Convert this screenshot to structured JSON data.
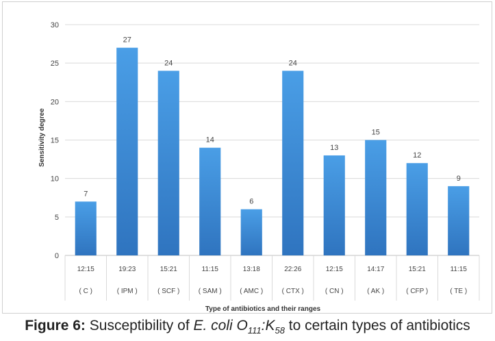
{
  "chart_data": {
    "type": "bar",
    "categories": [
      "12:15",
      "19:23",
      "15:21",
      "11:15",
      "13:18",
      "22:26",
      "12:15",
      "14:17",
      "15:21",
      "11:15"
    ],
    "antibiotics": [
      "( C )",
      "( IPM )",
      "( SCF )",
      "( SAM )",
      "( AMC )",
      "( CTX )",
      "( CN )",
      "( AK )",
      "( CFP )",
      "( TE )"
    ],
    "values": [
      7,
      27,
      24,
      14,
      6,
      24,
      13,
      15,
      12,
      9
    ],
    "xlabel": "Type of antibiotics and their ranges",
    "ylabel": "Sensitivity degree",
    "ylim": [
      0,
      30
    ],
    "yticks": [
      0,
      5,
      10,
      15,
      20,
      25,
      30
    ],
    "grid": true,
    "bar_color_top": "#4a9ee6",
    "bar_color_bottom": "#2f74bf"
  },
  "caption": {
    "label": "Figure 6:",
    "text_before": " Susceptibility of ",
    "organism": "E. coli O",
    "sub1": "111",
    "sep": ":K",
    "sub2": "58",
    "text_after": " to certain types of antibiotics"
  }
}
